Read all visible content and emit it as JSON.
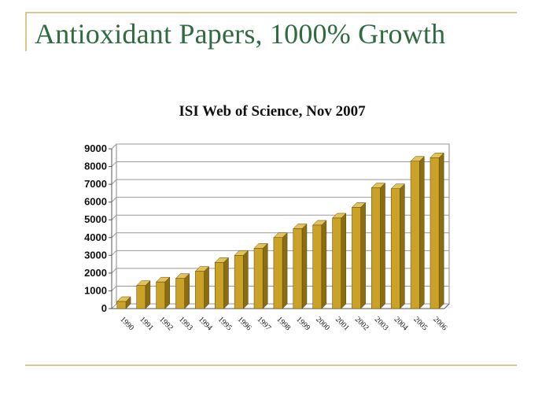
{
  "slide": {
    "title": "Antioxidant Papers, 1000% Growth"
  },
  "colors": {
    "title_green": "#2f6b3f",
    "rule_gold": "#d6c98a",
    "bar_front": "#c9a227",
    "bar_side": "#8a6d10",
    "bar_top": "#e2c35a"
  },
  "chart_data": {
    "type": "bar",
    "title": "ISI Web of Science, Nov 2007",
    "xlabel": "",
    "ylabel": "",
    "categories": [
      "1990",
      "1991",
      "1992",
      "1993",
      "1994",
      "1995",
      "1996",
      "1997",
      "1998",
      "1999",
      "2000",
      "2001",
      "2002",
      "2003",
      "2004",
      "2005",
      "2006"
    ],
    "values": [
      400,
      1300,
      1500,
      1700,
      2100,
      2600,
      3000,
      3400,
      4000,
      4500,
      4700,
      5100,
      5700,
      6800,
      6750,
      8300,
      8500
    ],
    "ylim": [
      0,
      9000
    ],
    "yticks": [
      0,
      1000,
      2000,
      3000,
      4000,
      5000,
      6000,
      7000,
      8000,
      9000
    ],
    "grid": true,
    "legend": "none"
  }
}
